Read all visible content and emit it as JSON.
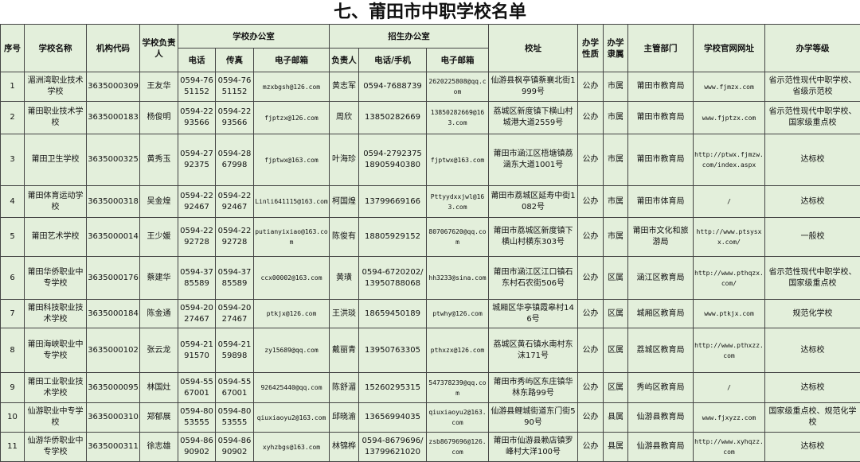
{
  "title": "七、莆田市中职学校名单",
  "headers": {
    "seq": "序号",
    "name": "学校名称",
    "code": "机构代码",
    "head": "学校负责人",
    "office": "学校办公室",
    "office_phone": "电话",
    "office_fax": "传真",
    "office_email": "电子邮箱",
    "admission": "招生办公室",
    "adm_head": "负责人",
    "adm_phone": "电话/手机",
    "adm_email": "电子邮箱",
    "address": "校址",
    "nature": "办学性质",
    "affiliation": "办学隶属",
    "authority": "主管部门",
    "website": "学校官网网址",
    "level": "办学等级"
  },
  "rows": [
    [
      "1",
      "湄洲湾职业技术学校",
      "3635000309",
      "王友华",
      "0594-7651152",
      "0594-7651152",
      "mzxbgsh@126.com",
      "黄志军",
      "0594-7688739",
      "2620225808@qq.com",
      "仙游县枫亭镇蔡襄北街1999号",
      "公办",
      "市属",
      "莆田市教育局",
      "www.fjmzx.com",
      "省示范性现代中职学校、省级示范校"
    ],
    [
      "2",
      "莆田职业技术学校",
      "3635000183",
      "杨俊明",
      "0594-2293566",
      "0594-2293566",
      "fjptzx@126.com",
      "周欣",
      "13850282669",
      "13850282669@163.com",
      "荔城区新度镇下横山村城港大道2559号",
      "公办",
      "市属",
      "莆田市教育局",
      "www.fjptzx.com",
      "省示范性现代中职学校、国家级重点校"
    ],
    [
      "3",
      "莆田卫生学校",
      "3635000325",
      "黄秀玉",
      "0594-2792375",
      "0594-2867998",
      "fjptwx@163.com",
      "叶海珍",
      "0594-2792375 18905940380",
      "fjptwx@163.com",
      "莆田市涵江区梧塘镇荔涵东大道1001号",
      "公办",
      "市属",
      "莆田市教育局",
      "http://ptwx.fjmzw.com/index.aspx",
      "达标校"
    ],
    [
      "4",
      "莆田体育运动学校",
      "3635000318",
      "吴金煌",
      "0594-2292467",
      "0594-2292467",
      "Linli641115@163.com",
      "柯国煌",
      "13799669166",
      "Pttyydxxjwl@163.com",
      "莆田市荔城区延寿中街1082号",
      "公办",
      "市属",
      "莆田市体育局",
      "/",
      "达标校"
    ],
    [
      "5",
      "莆田艺术学校",
      "3635000014",
      "王少媛",
      "0594-2292728",
      "0594-2292728",
      "putianyixiao@163.com",
      "陈俊有",
      "18805929152",
      "807067620@qq.com",
      "莆田市荔城区新度镇下横山村横东303号",
      "公办",
      "市属",
      "莆田市文化和旅游局",
      "http://www.ptsysxx.com/",
      "一般校"
    ],
    [
      "6",
      "莆田华侨职业中专学校",
      "3635000176",
      "蔡建华",
      "0594-3785589",
      "0594-3785589",
      "ccx00002@163.com",
      "黄璜",
      "0594-6720202/13950788068",
      "hh3233@sina.com",
      "莆田市涵江区江口镇石东村石农街506号",
      "公办",
      "区属",
      "涵江区教育局",
      "http://www.pthqzx.com/",
      "省示范性现代中职学校、国家级重点校"
    ],
    [
      "7",
      "莆田科技职业技术学校",
      "3635000184",
      "陈金通",
      "0594-2027467",
      "0594-2027467",
      "ptkjx@126.com",
      "王洪琰",
      "18659450189",
      "ptwhy@126.com",
      "城厢区华亭镇霞皋村146号",
      "公办",
      "区属",
      "城厢区教育局",
      "www.ptkjx.com",
      "规范化学校"
    ],
    [
      "8",
      "莆田海峡职业中专学校",
      "3635000102",
      "张云龙",
      "0594-2191570",
      "0594-2159898",
      "zy15689@qq.com",
      "戴丽青",
      "13950763305",
      "pthxzx@126.com",
      "荔城区黄石镇水南村东沫171号",
      "公办",
      "区属",
      "荔城区教育局",
      "http://www.pthxzz.com",
      "达标校"
    ],
    [
      "9",
      "莆田工业职业技术学校",
      "3635000095",
      "林国灶",
      "0594-5567001",
      "0594-5567001",
      "926425440@qq.com",
      "陈舒湄",
      "15260295315",
      "547378239@qq.com",
      "莆田市秀屿区东庄镇华林东路99号",
      "公办",
      "区属",
      "秀屿区教育局",
      "/",
      "达标校"
    ],
    [
      "10",
      "仙游职业中专学校",
      "3635000310",
      "郑郁展",
      "0594-8053555",
      "0594-8053555",
      "qiuxiaoyu2@163.com",
      "邱晓渝",
      "13656994035",
      "qiuxiaoyu2@163.com",
      "仙游县鲤城街道东门街590号",
      "公办",
      "县属",
      "仙游县教育局",
      "www.fjxyzz.com",
      "国家级重点校、规范化学校"
    ],
    [
      "11",
      "仙游华侨职业中专学校",
      "3635000311",
      "徐志雄",
      "0594-8690902",
      "0594-8690902",
      "xyhzbgs@163.com",
      "林锦桦",
      "0594-8679696/13799621020",
      "zsb8679696@126.com",
      "莆田市仙游县赖店镇罗峰村大洋100号",
      "公办",
      "县属",
      "仙游县教育局",
      "http://www.xyhqzz.com",
      "达标校"
    ]
  ]
}
